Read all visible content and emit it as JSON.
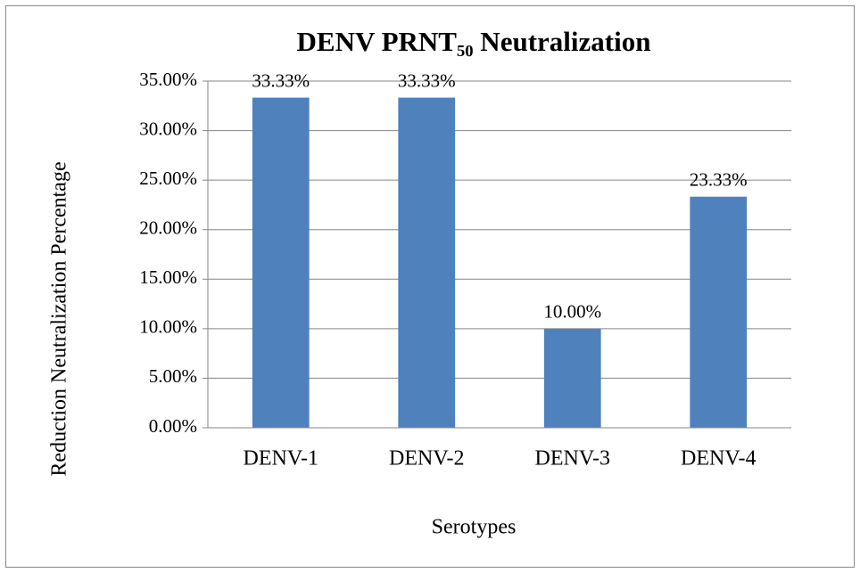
{
  "chart_data": {
    "type": "bar",
    "title": "DENV PRNT₅₀ Neutralization",
    "x_label": "Serotypes",
    "y_label": "Reduction Neutralization Percentage",
    "categories": [
      "DENV-1",
      "DENV-2",
      "DENV-3",
      "DENV-4"
    ],
    "values": [
      33.33,
      33.33,
      10,
      23.33
    ],
    "value_labels": [
      "33.33%",
      "33.33%",
      "10.00%",
      "23.33%"
    ],
    "color": "#4f81bd",
    "ylim": [
      0,
      35
    ],
    "yticks": [
      {
        "value": 0,
        "label": "0.00%"
      },
      {
        "value": 5,
        "label": "5.00%"
      },
      {
        "value": 10,
        "label": "10.00%"
      },
      {
        "value": 15,
        "label": "15.00%"
      },
      {
        "value": 20,
        "label": "20.00%"
      },
      {
        "value": 25,
        "label": "25.00%"
      },
      {
        "value": 30,
        "label": "30.00%"
      },
      {
        "value": 35,
        "label": "35.00%"
      }
    ],
    "grid": true
  }
}
